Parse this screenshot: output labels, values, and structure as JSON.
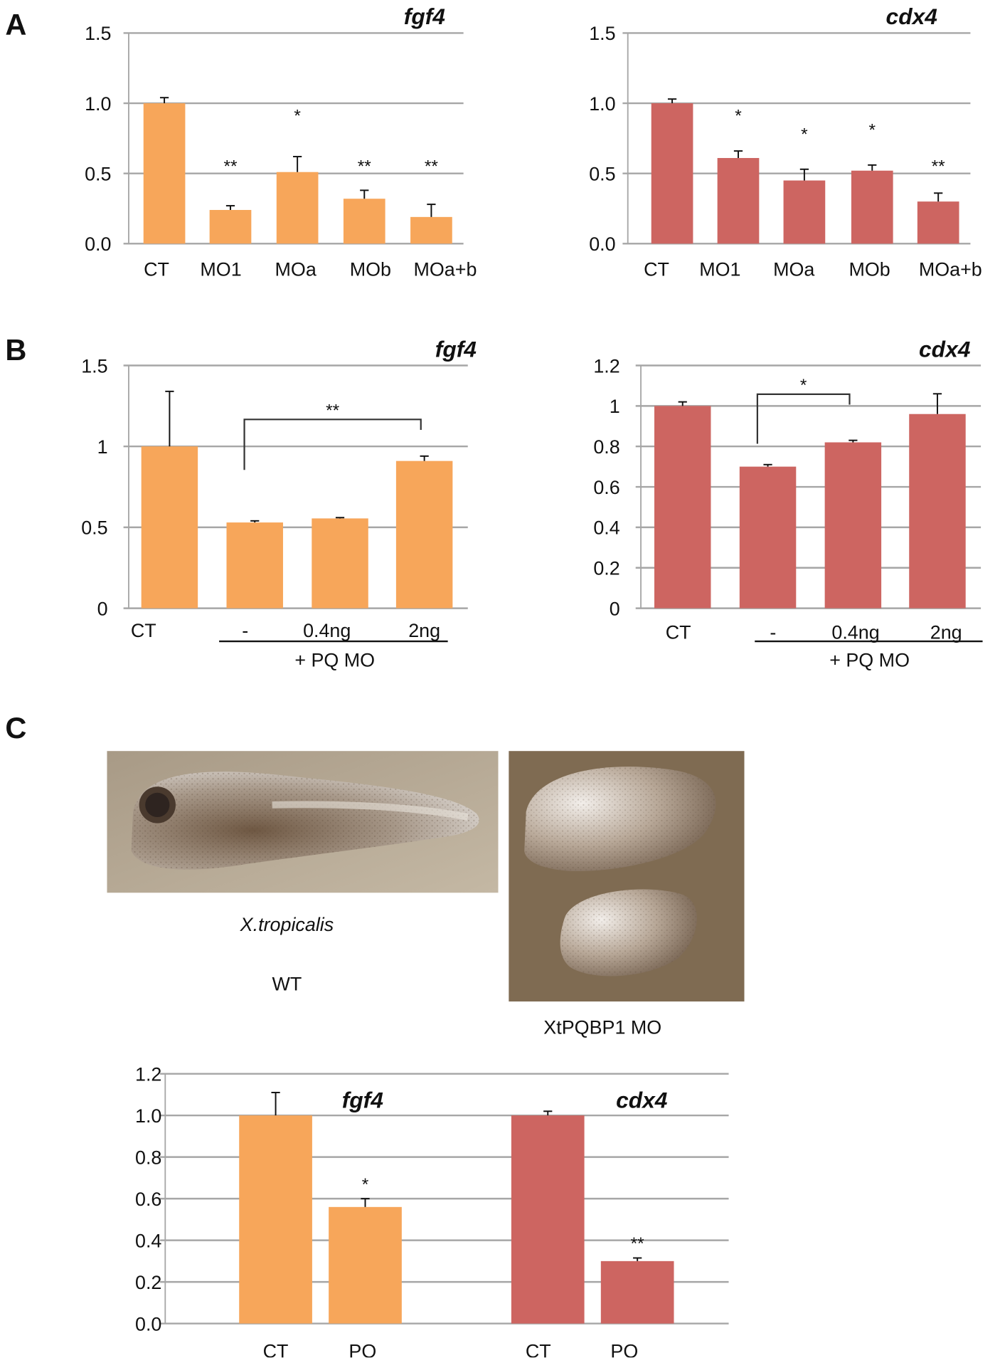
{
  "panels": {
    "a": "A",
    "b": "B",
    "c": "C"
  },
  "photos": {
    "wt_species": "X.tropicalis",
    "wt_label": "WT",
    "mo_label": "XtPQBP1 MO"
  },
  "colors": {
    "fgf4": "#F7A65A",
    "cdx4": "#CD6561",
    "grid": "#A6A6A6"
  },
  "chart_data": [
    {
      "id": "A-fgf4",
      "type": "bar",
      "title": "fgf4",
      "color": "#F7A65A",
      "categories": [
        "CT",
        "MO1",
        "MOa",
        "MOb",
        "MOa+b"
      ],
      "values": [
        1.0,
        0.24,
        0.51,
        0.32,
        0.19
      ],
      "errors": [
        0.04,
        0.03,
        0.11,
        0.06,
        0.09
      ],
      "significance": [
        "",
        "**",
        "*",
        "**",
        "**"
      ],
      "ylim": [
        0,
        1.5
      ],
      "yticks": [
        "0.0",
        "0.5",
        "1.0",
        "1.5"
      ],
      "grid": true
    },
    {
      "id": "A-cdx4",
      "type": "bar",
      "title": "cdx4",
      "color": "#CD6561",
      "categories": [
        "CT",
        "MO1",
        "MOa",
        "MOb",
        "MOa+b"
      ],
      "values": [
        1.0,
        0.61,
        0.45,
        0.52,
        0.3
      ],
      "errors": [
        0.03,
        0.05,
        0.08,
        0.04,
        0.06
      ],
      "significance": [
        "",
        "*",
        "*",
        "*",
        "**"
      ],
      "ylim": [
        0,
        1.5
      ],
      "yticks": [
        "0.0",
        "0.5",
        "1.0",
        "1.5"
      ],
      "grid": true
    },
    {
      "id": "B-fgf4",
      "type": "bar",
      "title": "fgf4",
      "color": "#F7A65A",
      "categories": [
        "CT",
        "-",
        "0.4ng",
        "2ng"
      ],
      "values": [
        1.0,
        0.53,
        0.555,
        0.91
      ],
      "errors": [
        0.34,
        0.01,
        0.005,
        0.03
      ],
      "group_label": "+ PQ MO",
      "bracket": {
        "from": "-",
        "to": "2ng",
        "label": "**"
      },
      "ylim": [
        0,
        1.5
      ],
      "yticks": [
        "0",
        "0.5",
        "1",
        "1.5"
      ],
      "grid": true
    },
    {
      "id": "B-cdx4",
      "type": "bar",
      "title": "cdx4",
      "color": "#CD6561",
      "categories": [
        "CT",
        "-",
        "0.4ng",
        "2ng"
      ],
      "values": [
        1.0,
        0.7,
        0.82,
        0.96
      ],
      "errors": [
        0.02,
        0.01,
        0.01,
        0.1
      ],
      "group_label": "+ PQ MO",
      "bracket": {
        "from": "-",
        "to": "0.4ng",
        "label": "*"
      },
      "ylim": [
        0,
        1.2
      ],
      "yticks": [
        "0",
        "0.2",
        "0.4",
        "0.6",
        "0.8",
        "1",
        "1.2"
      ],
      "grid": true
    },
    {
      "id": "C",
      "type": "bar",
      "titles": [
        "fgf4",
        "cdx4"
      ],
      "categories": [
        "CT",
        "PQ",
        "CT",
        "PQ"
      ],
      "values": [
        1.0,
        0.56,
        1.0,
        0.3
      ],
      "errors": [
        0.11,
        0.04,
        0.02,
        0.015
      ],
      "significance": [
        "",
        "*",
        "",
        "**"
      ],
      "bar_colors": [
        "#F7A65A",
        "#F7A65A",
        "#CD6561",
        "#CD6561"
      ],
      "ylim": [
        0,
        1.2
      ],
      "yticks": [
        "0.0",
        "0.2",
        "0.4",
        "0.6",
        "0.8",
        "1.0",
        "1.2"
      ],
      "grid": true
    }
  ]
}
